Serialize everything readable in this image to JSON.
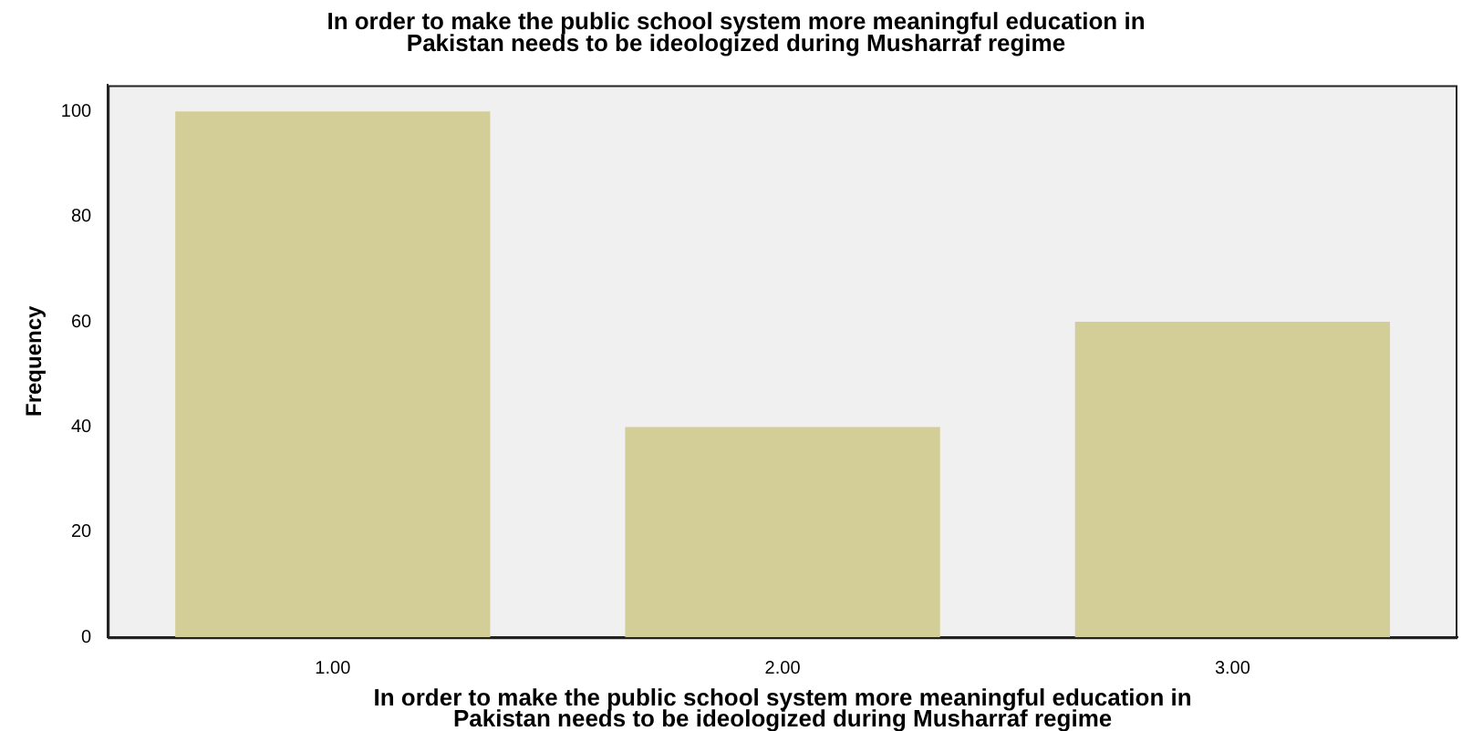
{
  "chart_data": {
    "type": "bar",
    "title": "In order to make the public school system more meaningful education in Pakistan needs to be ideologized during Musharraf regime",
    "xlabel": "In order to make the public school system more meaningful education in Pakistan needs to be ideologized during Musharraf regime",
    "ylabel": "Frequency",
    "categories": [
      "1.00",
      "2.00",
      "3.00"
    ],
    "values": [
      100,
      40,
      60
    ],
    "color": "#d3ce97",
    "ylim": [
      0,
      105
    ],
    "yticks": [
      0,
      20,
      40,
      60,
      80,
      100
    ],
    "grid": false,
    "legend": false
  }
}
